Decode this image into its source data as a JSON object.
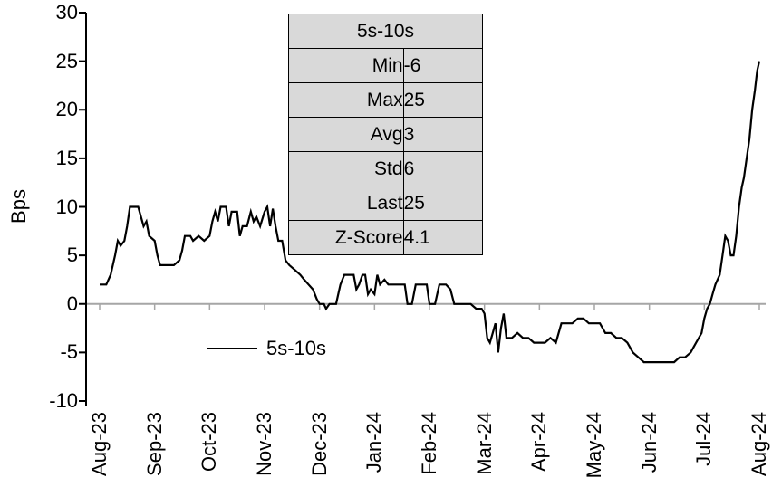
{
  "chart": {
    "y_axis_title": "Bps",
    "series_name": "5s-10s",
    "colors": {
      "series": "#000000",
      "zero_line": "#a6a6a6",
      "table_bg": "#d9d9d9"
    }
  },
  "stats_table": {
    "title": "5s-10s",
    "rows": [
      {
        "label": "Min",
        "value": "-6"
      },
      {
        "label": "Max",
        "value": "25"
      },
      {
        "label": "Avg",
        "value": "3"
      },
      {
        "label": "Std",
        "value": "6"
      },
      {
        "label": "Last",
        "value": "25"
      },
      {
        "label": "Z-Score",
        "value": "4.1"
      }
    ]
  },
  "chart_data": {
    "type": "line",
    "title": "",
    "xlabel": "",
    "ylabel": "Bps",
    "ylim": [
      -10,
      30
    ],
    "grid": false,
    "legend_position": "inside-bottom-left",
    "y_ticks": [
      30,
      25,
      20,
      15,
      10,
      5,
      0,
      -5,
      -10
    ],
    "x_tick_labels": [
      "Aug-23",
      "Sep-23",
      "Oct-23",
      "Nov-23",
      "Dec-23",
      "Jan-24",
      "Feb-24",
      "Mar-24",
      "Apr-24",
      "May-24",
      "Jun-24",
      "Jul-24",
      "Aug-24"
    ],
    "series": [
      {
        "name": "5s-10s",
        "points": [
          [
            0,
            2
          ],
          [
            0.12,
            2
          ],
          [
            0.2,
            3
          ],
          [
            0.28,
            5
          ],
          [
            0.33,
            6.5
          ],
          [
            0.38,
            6
          ],
          [
            0.45,
            6.5
          ],
          [
            0.5,
            8
          ],
          [
            0.55,
            10
          ],
          [
            0.7,
            10
          ],
          [
            0.75,
            9
          ],
          [
            0.8,
            8
          ],
          [
            0.85,
            8.5
          ],
          [
            0.9,
            7
          ],
          [
            1,
            6.5
          ],
          [
            1.05,
            5
          ],
          [
            1.1,
            4
          ],
          [
            1.35,
            4
          ],
          [
            1.45,
            4.5
          ],
          [
            1.5,
            5.5
          ],
          [
            1.55,
            7
          ],
          [
            1.65,
            7
          ],
          [
            1.7,
            6.5
          ],
          [
            1.8,
            7
          ],
          [
            1.9,
            6.5
          ],
          [
            2,
            7
          ],
          [
            2.05,
            8.5
          ],
          [
            2.1,
            9.5
          ],
          [
            2.15,
            8.5
          ],
          [
            2.2,
            10
          ],
          [
            2.3,
            10
          ],
          [
            2.35,
            8
          ],
          [
            2.4,
            9.5
          ],
          [
            2.5,
            9.5
          ],
          [
            2.55,
            7
          ],
          [
            2.6,
            8
          ],
          [
            2.68,
            8
          ],
          [
            2.75,
            9.5
          ],
          [
            2.8,
            8.5
          ],
          [
            2.85,
            9
          ],
          [
            2.92,
            8
          ],
          [
            3,
            9.5
          ],
          [
            3.05,
            10
          ],
          [
            3.1,
            8
          ],
          [
            3.15,
            9.8
          ],
          [
            3.2,
            8
          ],
          [
            3.25,
            6.5
          ],
          [
            3.32,
            6.5
          ],
          [
            3.38,
            4.5
          ],
          [
            3.45,
            4
          ],
          [
            3.55,
            3.5
          ],
          [
            3.65,
            3
          ],
          [
            3.72,
            2.5
          ],
          [
            3.8,
            2
          ],
          [
            3.88,
            1.5
          ],
          [
            3.95,
            0.5
          ],
          [
            4,
            0
          ],
          [
            4.08,
            0
          ],
          [
            4.12,
            -0.5
          ],
          [
            4.18,
            0
          ],
          [
            4.3,
            0
          ],
          [
            4.38,
            2
          ],
          [
            4.45,
            3
          ],
          [
            4.62,
            3
          ],
          [
            4.67,
            1.5
          ],
          [
            4.72,
            2
          ],
          [
            4.78,
            3
          ],
          [
            4.83,
            3
          ],
          [
            4.88,
            1
          ],
          [
            4.93,
            1.5
          ],
          [
            5,
            1
          ],
          [
            5.05,
            3
          ],
          [
            5.1,
            2
          ],
          [
            5.18,
            2.5
          ],
          [
            5.25,
            2
          ],
          [
            5.45,
            2
          ],
          [
            5.55,
            2
          ],
          [
            5.6,
            0
          ],
          [
            5.68,
            0
          ],
          [
            5.75,
            2
          ],
          [
            5.95,
            2
          ],
          [
            6,
            0
          ],
          [
            6.1,
            0
          ],
          [
            6.18,
            2
          ],
          [
            6.3,
            2
          ],
          [
            6.38,
            1.5
          ],
          [
            6.45,
            0
          ],
          [
            6.75,
            0
          ],
          [
            6.85,
            -0.5
          ],
          [
            6.95,
            -0.5
          ],
          [
            7,
            -1
          ],
          [
            7.05,
            -3.5
          ],
          [
            7.1,
            -4
          ],
          [
            7.15,
            -3
          ],
          [
            7.2,
            -2
          ],
          [
            7.25,
            -5
          ],
          [
            7.3,
            -2.5
          ],
          [
            7.35,
            -1
          ],
          [
            7.4,
            -3.5
          ],
          [
            7.5,
            -3.5
          ],
          [
            7.6,
            -3
          ],
          [
            7.7,
            -3.5
          ],
          [
            7.8,
            -3.5
          ],
          [
            7.9,
            -4
          ],
          [
            8.1,
            -4
          ],
          [
            8.2,
            -3.5
          ],
          [
            8.3,
            -4
          ],
          [
            8.4,
            -2
          ],
          [
            8.6,
            -2
          ],
          [
            8.7,
            -1.5
          ],
          [
            8.8,
            -1.5
          ],
          [
            8.9,
            -2
          ],
          [
            9.1,
            -2
          ],
          [
            9.2,
            -3
          ],
          [
            9.3,
            -3
          ],
          [
            9.4,
            -3.5
          ],
          [
            9.5,
            -3.5
          ],
          [
            9.6,
            -4
          ],
          [
            9.7,
            -5
          ],
          [
            9.8,
            -5.5
          ],
          [
            9.9,
            -6
          ],
          [
            10.45,
            -6
          ],
          [
            10.55,
            -5.5
          ],
          [
            10.65,
            -5.5
          ],
          [
            10.75,
            -5
          ],
          [
            10.85,
            -4
          ],
          [
            10.95,
            -3
          ],
          [
            11,
            -1.5
          ],
          [
            11.05,
            -0.5
          ],
          [
            11.1,
            0
          ],
          [
            11.15,
            1
          ],
          [
            11.2,
            2
          ],
          [
            11.28,
            3
          ],
          [
            11.33,
            5
          ],
          [
            11.38,
            7
          ],
          [
            11.43,
            6.5
          ],
          [
            11.48,
            5
          ],
          [
            11.53,
            5
          ],
          [
            11.58,
            7
          ],
          [
            11.63,
            10
          ],
          [
            11.68,
            12
          ],
          [
            11.72,
            13
          ],
          [
            11.77,
            15
          ],
          [
            11.82,
            17
          ],
          [
            11.87,
            20
          ],
          [
            11.92,
            22
          ],
          [
            11.96,
            24
          ],
          [
            12,
            25
          ]
        ]
      }
    ]
  }
}
